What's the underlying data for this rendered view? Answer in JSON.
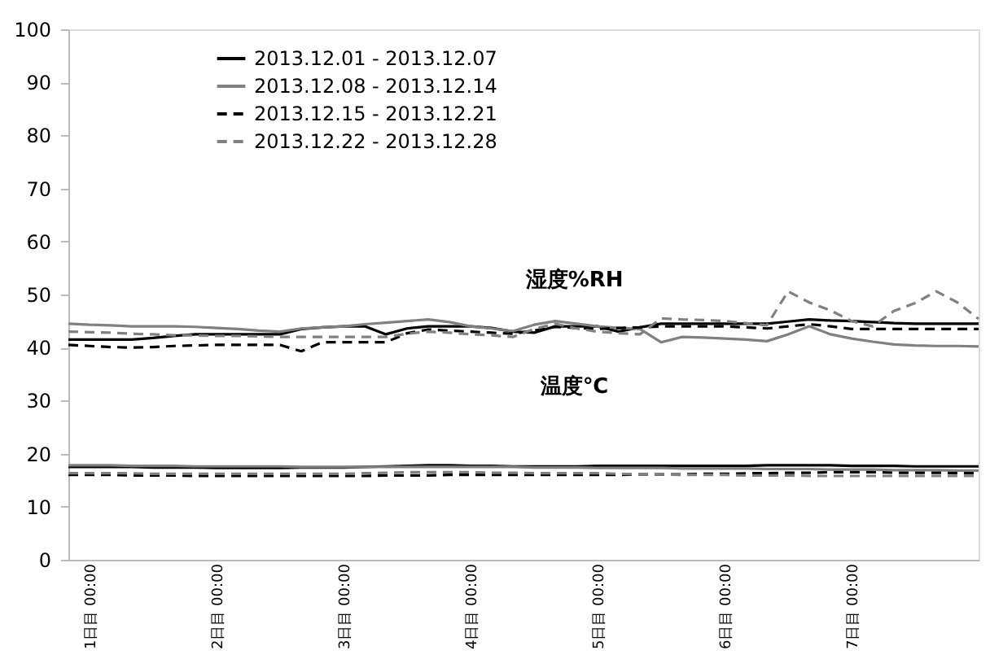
{
  "chart_data": {
    "type": "line",
    "legend": "top left",
    "grid": false,
    "categories": [
      null,
      "1日目 00:00",
      null,
      null,
      null,
      null,
      null,
      "2日目 00:00",
      null,
      null,
      null,
      null,
      null,
      "3日目 00:00",
      null,
      null,
      null,
      null,
      null,
      "4日目 00:00",
      null,
      null,
      null,
      null,
      null,
      "5日目 00:00",
      null,
      null,
      null,
      null,
      null,
      "6日目 00:00",
      null,
      null,
      null,
      null,
      null,
      "7日目 00:00",
      null,
      null,
      null,
      null,
      null,
      null
    ],
    "ylim": [
      0,
      100
    ],
    "yticks": [
      0,
      10,
      20,
      30,
      40,
      50,
      60,
      70,
      80,
      90,
      100
    ],
    "annotations": [
      "湿度%RH",
      "温度℃"
    ],
    "series": [
      {
        "name": "2013.12.01 - 2013.12.07",
        "color": "#000000",
        "line_style": "solid",
        "values": [
          41.5,
          41.5,
          41.5,
          41.5,
          41.8,
          42.2,
          42.5,
          42.5,
          42.5,
          42.5,
          42.5,
          43.5,
          43.8,
          44,
          44,
          42.5,
          43.6,
          44,
          44,
          44,
          43.7,
          43,
          42.8,
          44,
          44,
          44,
          43,
          43.8,
          44.5,
          44.5,
          44.5,
          44.5,
          44.5,
          44.5,
          44.9,
          45.3,
          45.1,
          45,
          44.8,
          44.6,
          44.5,
          44.5,
          44.5,
          44.5
        ]
      },
      {
        "name": "2013.12.08 - 2013.12.14",
        "color": "#808080",
        "line_style": "solid",
        "values": [
          44.5,
          44.3,
          44.2,
          44,
          44,
          44,
          43.9,
          43.7,
          43.5,
          43.2,
          43,
          43.6,
          43.8,
          44,
          44.4,
          44.7,
          45,
          45.3,
          44.8,
          44,
          43.6,
          43.1,
          44.3,
          45,
          44.5,
          44,
          43.7,
          43.5,
          41,
          42,
          41.9,
          41.7,
          41.5,
          41.2,
          42.5,
          44,
          42.5,
          41.7,
          41.1,
          40.6,
          40.4,
          40.3,
          40.3,
          40.2
        ]
      },
      {
        "name": "2013.12.15 - 2013.12.21",
        "color": "#000000",
        "line_style": "dashed",
        "values": [
          40.5,
          40.3,
          40.1,
          40,
          40.1,
          40.3,
          40.4,
          40.5,
          40.5,
          40.5,
          40.5,
          39.3,
          41,
          41,
          41,
          41,
          42.7,
          43.4,
          43.2,
          43,
          42.8,
          42.6,
          43.2,
          43.9,
          43.7,
          43.5,
          43.7,
          43.8,
          44,
          44,
          44,
          44,
          43.8,
          43.6,
          44,
          44.4,
          44,
          43.5,
          43.5,
          43.5,
          43.5,
          43.5,
          43.5,
          43.5
        ]
      },
      {
        "name": "2013.12.22 - 2013.12.28",
        "color": "#808080",
        "line_style": "dashed",
        "values": [
          43,
          42.9,
          42.8,
          42.6,
          42.5,
          42.3,
          42.3,
          42.2,
          42.2,
          42.1,
          42,
          42,
          42,
          42,
          42,
          42,
          42.6,
          43,
          42.8,
          42.5,
          42.3,
          42,
          43.5,
          44.5,
          43.6,
          43,
          42.7,
          42.5,
          45.5,
          45.3,
          45.2,
          45,
          44.6,
          44.2,
          50.6,
          48.5,
          47,
          45,
          44,
          46.9,
          48.4,
          50.6,
          48.5,
          45.4
        ]
      },
      {
        "color": "#000000",
        "line_style": "solid",
        "values": [
          17.5,
          17.5,
          17.5,
          17.5,
          17.4,
          17.4,
          17.4,
          17.3,
          17.3,
          17.3,
          17.3,
          17.4,
          17.4,
          17.4,
          17.5,
          17.6,
          17.7,
          17.8,
          17.8,
          17.7,
          17.7,
          17.6,
          17.6,
          17.6,
          17.6,
          17.7,
          17.7,
          17.7,
          17.7,
          17.7,
          17.7,
          17.7,
          17.7,
          17.8,
          17.8,
          17.8,
          17.8,
          17.7,
          17.7,
          17.7,
          17.6,
          17.6,
          17.6,
          17.6
        ]
      },
      {
        "color": "#808080",
        "line_style": "solid",
        "values": [
          17.8,
          17.8,
          17.8,
          17.7,
          17.7,
          17.7,
          17.6,
          17.6,
          17.6,
          17.6,
          17.6,
          17.5,
          17.5,
          17.5,
          17.5,
          17.5,
          17.5,
          17.5,
          17.5,
          17.5,
          17.5,
          17.5,
          17.4,
          17.4,
          17.4,
          17.3,
          17.3,
          17.3,
          17.3,
          17.2,
          17.2,
          17.2,
          17.2,
          17.1,
          17.1,
          17.1,
          17.0,
          17.0,
          17.0,
          16.9,
          16.9,
          16.9,
          16.8,
          16.8
        ]
      },
      {
        "color": "#000000",
        "line_style": "dashed",
        "values": [
          16,
          16,
          16,
          15.9,
          15.9,
          15.9,
          15.8,
          15.8,
          15.8,
          15.8,
          15.8,
          15.8,
          15.8,
          15.8,
          15.8,
          15.9,
          15.9,
          15.9,
          16,
          16,
          16,
          16,
          16,
          16,
          16,
          16,
          16,
          16.1,
          16.1,
          16.1,
          16.2,
          16.2,
          16.3,
          16.3,
          16.4,
          16.4,
          16.5,
          16.5,
          16.5,
          16.4,
          16.4,
          16.4,
          16.3,
          16.3
        ]
      },
      {
        "color": "#808080",
        "line_style": "dashed",
        "values": [
          16.3,
          16.3,
          16.3,
          16.3,
          16.2,
          16.2,
          16.2,
          16.2,
          16.2,
          16.2,
          16.2,
          16.2,
          16.2,
          16.2,
          16.3,
          16.4,
          16.5,
          16.5,
          16.5,
          16.5,
          16.4,
          16.4,
          16.3,
          16.3,
          16.3,
          16.3,
          16.2,
          16.1,
          16.1,
          16,
          16,
          16,
          15.9,
          15.9,
          15.9,
          15.8,
          15.8,
          15.8,
          15.8,
          15.8,
          15.8,
          15.8,
          15.8,
          15.8
        ]
      }
    ]
  }
}
